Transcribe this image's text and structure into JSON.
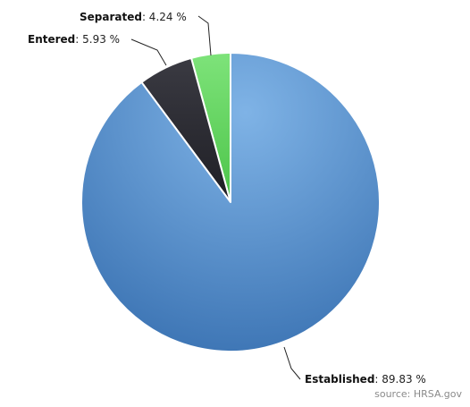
{
  "chart_data": {
    "type": "pie",
    "title": "",
    "slices": [
      {
        "label": "Separated",
        "value": 4.24,
        "display": "4.24 %",
        "color": "#5dd35a"
      },
      {
        "label": "Entered",
        "value": 5.93,
        "display": "5.93 %",
        "color": "#2c2c33"
      },
      {
        "label": "Established",
        "value": 89.83,
        "display": "89.83 %",
        "color": "#4a86c6"
      }
    ],
    "start_angle_deg": 0,
    "direction": "counterclockwise",
    "source": "source: HRSA.gov"
  }
}
